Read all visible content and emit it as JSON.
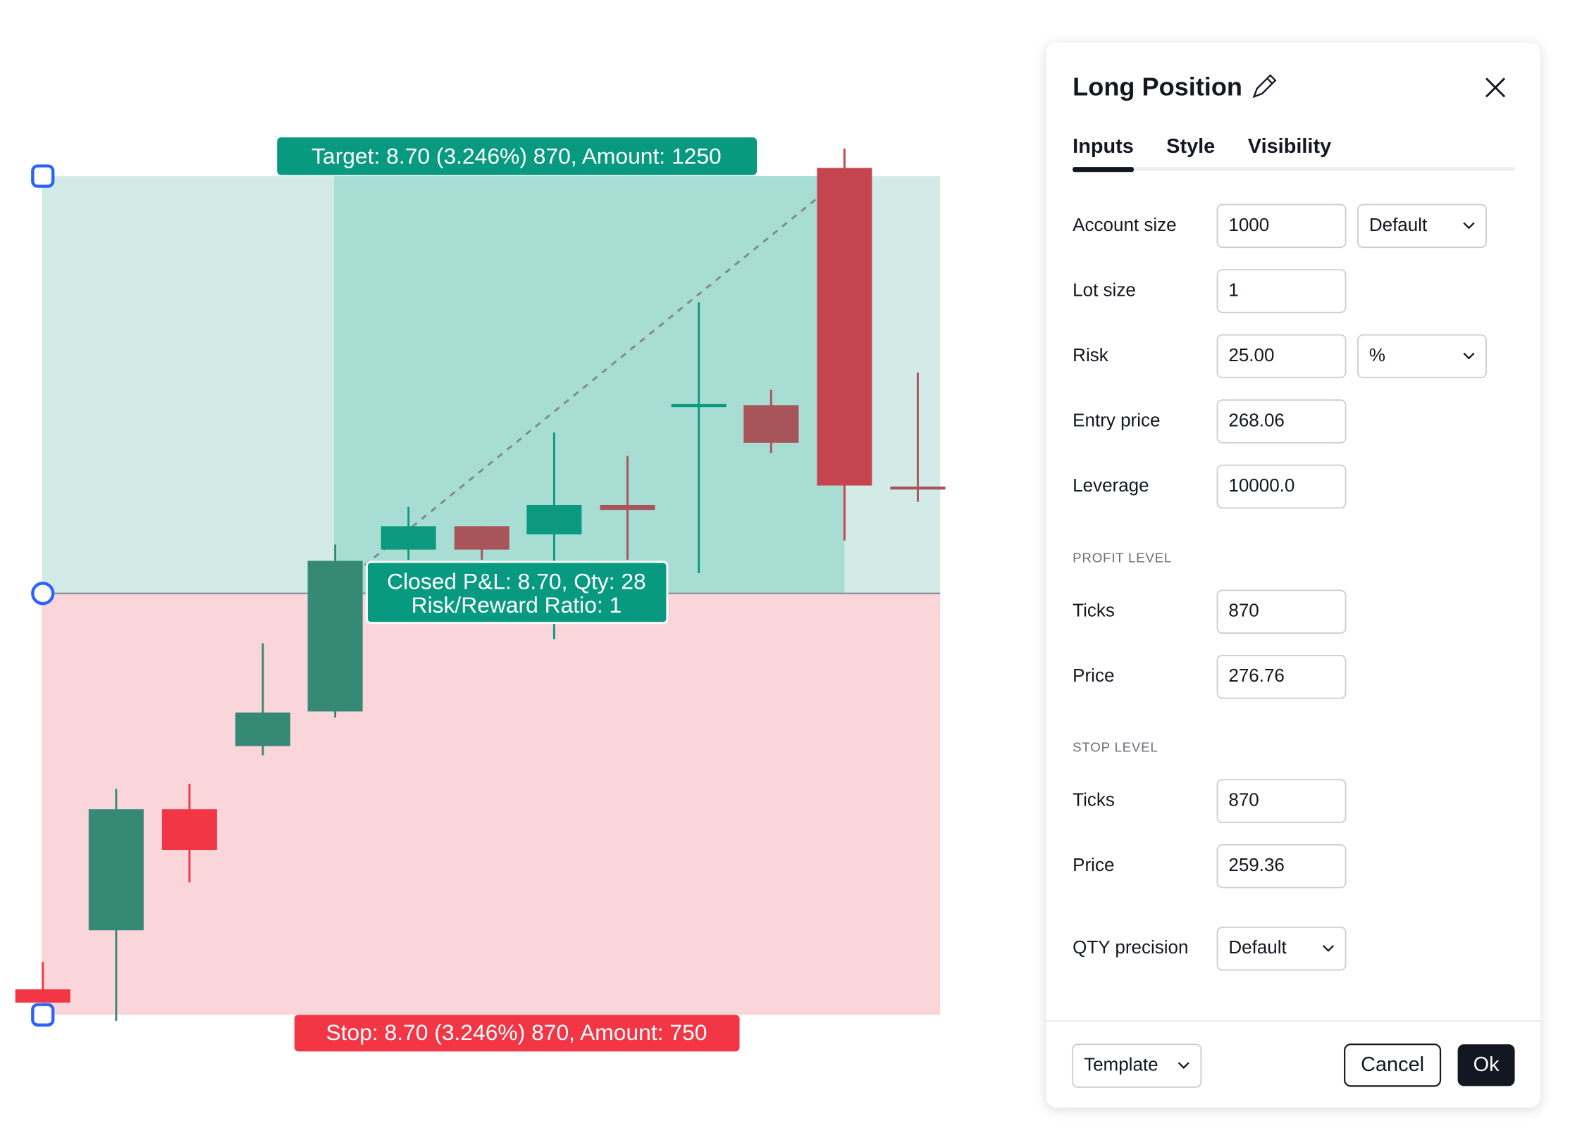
{
  "chart": {
    "target_label": "Target: 8.70 (3.246%) 870, Amount: 1250",
    "stop_label": "Stop: 8.70 (3.246%) 870, Amount: 750",
    "pnl_label": [
      "Closed P&L: 8.70, Qty: 28",
      "Risk/Reward Ratio: 1"
    ]
  },
  "dialog": {
    "title": "Long Position",
    "tabs": [
      "Inputs",
      "Style",
      "Visibility"
    ],
    "rows": [
      {
        "label": "Account size",
        "value": "1000",
        "select": "Default"
      },
      {
        "label": "Lot size",
        "value": "1"
      },
      {
        "label": "Risk",
        "value": "25.00",
        "select": "%"
      },
      {
        "label": "Entry price",
        "value": "268.06"
      },
      {
        "label": "Leverage",
        "value": "10000.0"
      }
    ],
    "profit_level": {
      "heading": "PROFIT LEVEL",
      "rows": [
        {
          "label": "Ticks",
          "value": "870"
        },
        {
          "label": "Price",
          "value": "276.76"
        }
      ]
    },
    "stop_level": {
      "heading": "STOP LEVEL",
      "rows": [
        {
          "label": "Ticks",
          "value": "870"
        },
        {
          "label": "Price",
          "value": "259.36"
        }
      ]
    },
    "qty_precision": {
      "label": "QTY precision",
      "select": "Default"
    },
    "footer": {
      "template": "Template",
      "cancel": "Cancel",
      "ok": "Ok"
    }
  }
}
